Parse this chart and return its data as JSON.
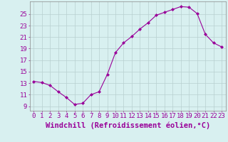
{
  "x": [
    0,
    1,
    2,
    3,
    4,
    5,
    6,
    7,
    8,
    9,
    10,
    11,
    12,
    13,
    14,
    15,
    16,
    17,
    18,
    19,
    20,
    21,
    22,
    23
  ],
  "y": [
    13.3,
    13.1,
    12.6,
    11.5,
    10.5,
    9.3,
    9.5,
    11.0,
    11.5,
    14.5,
    18.3,
    20.0,
    21.1,
    22.4,
    23.5,
    24.8,
    25.3,
    25.8,
    26.3,
    26.2,
    25.1,
    21.5,
    20.0,
    19.3
  ],
  "line_color": "#990099",
  "marker": "D",
  "marker_size": 2.0,
  "bg_color": "#d8f0f0",
  "grid_color": "#b8d0d0",
  "xlabel": "Windchill (Refroidissement éolien,°C)",
  "yticks": [
    9,
    11,
    13,
    15,
    17,
    19,
    21,
    23,
    25
  ],
  "ylim": [
    8.2,
    27.2
  ],
  "xlim": [
    -0.5,
    23.5
  ],
  "xticks": [
    0,
    1,
    2,
    3,
    4,
    5,
    6,
    7,
    8,
    9,
    10,
    11,
    12,
    13,
    14,
    15,
    16,
    17,
    18,
    19,
    20,
    21,
    22,
    23
  ],
  "font_size": 6.5,
  "label_color": "#990099",
  "xlabel_fontsize": 7.5
}
